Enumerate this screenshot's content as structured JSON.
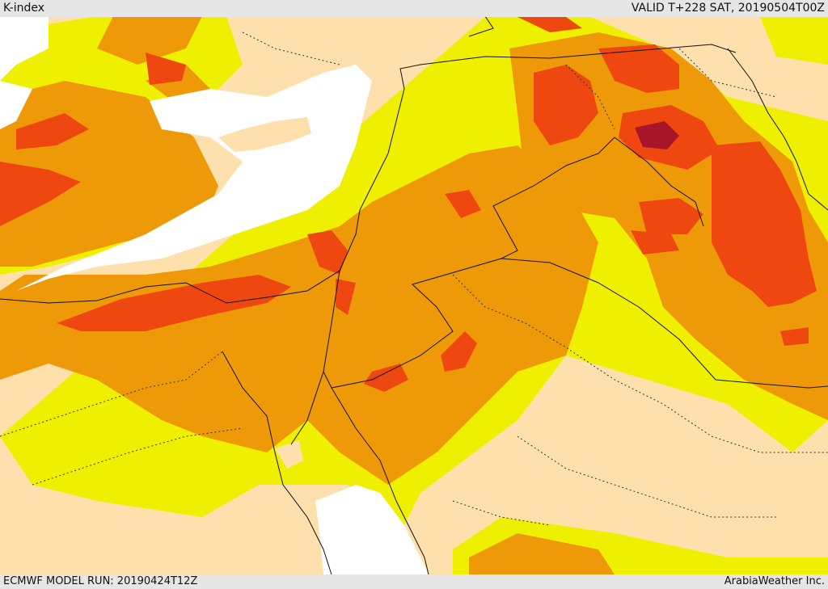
{
  "header": {
    "title": "K-index",
    "valid_time": "VALID T+228 SAT, 20190504T00Z"
  },
  "footer": {
    "model_run": "ECMWF MODEL RUN: 20190424T12Z",
    "credit": "ArabiaWeather Inc."
  },
  "colors": {
    "land_base": "#fde0ac",
    "water": "#ffffff",
    "level_1": "#eef000",
    "level_2": "#ee9a08",
    "level_3": "#ee4810",
    "level_4": "#a8142a",
    "border": "#111111"
  }
}
